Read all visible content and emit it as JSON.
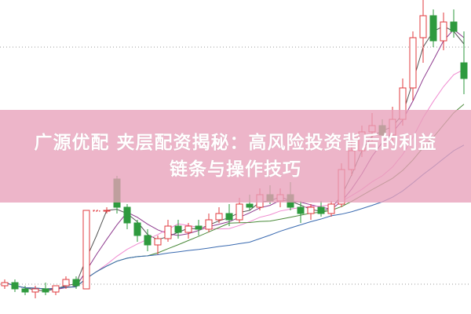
{
  "headline": {
    "line1": "广源优配 夹层配资揭秘：高风险投资背后的利益",
    "line2": "链条与操作技巧"
  },
  "colors": {
    "up": "#e03a3e",
    "down": "#2e9a3e",
    "banner": "#e8a0ba",
    "ma_lines": [
      "#555555",
      "#8e3a8e",
      "#f08ad0",
      "#4a8a3a",
      "#3a6ab0"
    ]
  },
  "chart_data": {
    "type": "candlestick",
    "grid": "dotted horizontal",
    "ylim": [
      0,
      100
    ],
    "ohlc": [
      [
        9,
        11,
        8,
        10
      ],
      [
        10,
        11,
        7,
        8
      ],
      [
        8,
        9,
        6,
        7
      ],
      [
        7,
        9,
        5,
        8
      ],
      [
        8,
        10,
        6,
        7
      ],
      [
        7,
        9,
        6,
        9
      ],
      [
        9,
        12,
        8,
        11
      ],
      [
        11,
        12,
        8,
        9
      ],
      [
        8,
        33,
        8,
        33
      ],
      [
        33,
        33,
        33,
        33
      ],
      [
        33,
        34,
        32,
        33
      ],
      [
        43,
        44,
        32,
        34
      ],
      [
        34,
        35,
        27,
        29
      ],
      [
        29,
        30,
        23,
        25
      ],
      [
        25,
        27,
        20,
        22
      ],
      [
        22,
        25,
        19,
        24
      ],
      [
        24,
        30,
        23,
        28
      ],
      [
        28,
        30,
        24,
        26
      ],
      [
        26,
        29,
        24,
        28
      ],
      [
        28,
        30,
        25,
        27
      ],
      [
        27,
        32,
        26,
        30
      ],
      [
        30,
        34,
        29,
        32
      ],
      [
        32,
        35,
        28,
        30
      ],
      [
        30,
        37,
        29,
        35
      ],
      [
        35,
        38,
        33,
        34
      ],
      [
        34,
        40,
        33,
        38
      ],
      [
        38,
        41,
        35,
        36
      ],
      [
        36,
        40,
        34,
        38
      ],
      [
        38,
        42,
        33,
        34
      ],
      [
        34,
        36,
        29,
        32
      ],
      [
        32,
        35,
        30,
        34
      ],
      [
        34,
        36,
        31,
        32
      ],
      [
        32,
        36,
        31,
        35
      ],
      [
        35,
        48,
        34,
        46
      ],
      [
        46,
        55,
        44,
        52
      ],
      [
        52,
        60,
        50,
        58
      ],
      [
        58,
        64,
        55,
        60
      ],
      [
        60,
        62,
        54,
        57
      ],
      [
        57,
        66,
        55,
        62
      ],
      [
        62,
        75,
        60,
        72
      ],
      [
        72,
        90,
        68,
        88
      ],
      [
        88,
        100,
        80,
        95
      ],
      [
        95,
        97,
        85,
        87
      ],
      [
        87,
        96,
        84,
        93
      ],
      [
        93,
        97,
        88,
        90
      ],
      [
        80,
        90,
        70,
        75
      ]
    ],
    "moving_average_periods": [
      3,
      5,
      10,
      15,
      25
    ]
  }
}
